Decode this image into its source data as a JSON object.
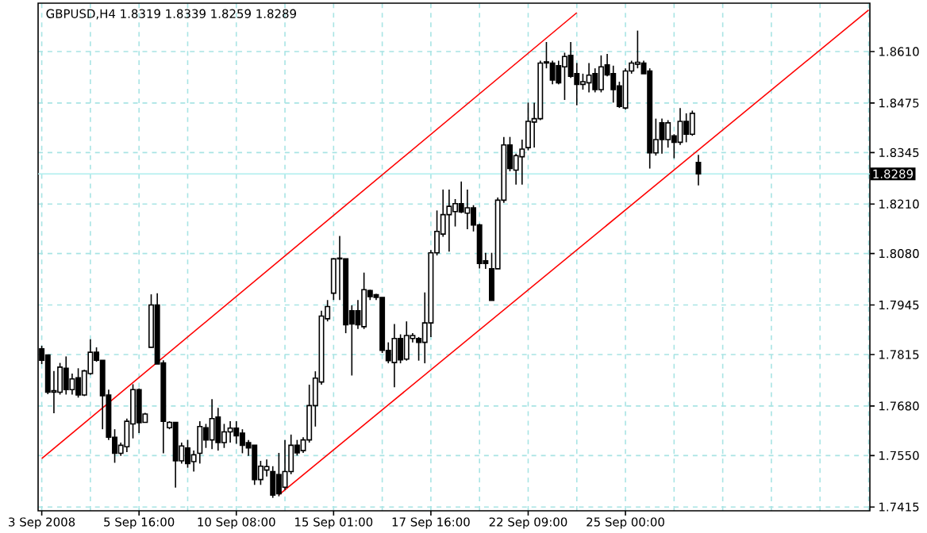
{
  "chart_data": {
    "type": "candlestick",
    "title": "GBPUSD,H4  1.8319 1.8339 1.8259 1.8289",
    "categories": [
      "3 Sep 2008",
      null,
      null,
      null,
      null,
      null,
      null,
      null,
      null,
      null,
      null,
      null,
      null,
      null,
      null,
      null,
      "5 Sep 16:00",
      null,
      null,
      null,
      null,
      null,
      null,
      null,
      null,
      null,
      null,
      null,
      null,
      null,
      null,
      null,
      "10 Sep 08:00",
      null,
      null,
      null,
      null,
      null,
      null,
      null,
      null,
      null,
      null,
      null,
      null,
      null,
      null,
      null,
      "15 Sep 01:00",
      null,
      null,
      null,
      null,
      null,
      null,
      null,
      null,
      null,
      null,
      null,
      null,
      null,
      null,
      null,
      "17 Sep 16:00",
      null,
      null,
      null,
      null,
      null,
      null,
      null,
      null,
      null,
      null,
      null,
      null,
      null,
      null,
      null,
      "22 Sep 09:00",
      null,
      null,
      null,
      null,
      null,
      null,
      null,
      null,
      null,
      null,
      null,
      null,
      null,
      null,
      null,
      "25 Sep 00:00",
      null,
      null,
      null,
      null,
      null,
      null,
      null,
      null,
      null,
      null,
      null,
      null,
      null,
      null,
      null,
      null,
      null,
      null,
      null,
      null,
      null,
      null,
      null,
      null,
      null,
      null,
      null,
      null,
      null,
      null,
      null,
      null,
      null,
      null,
      null,
      null,
      null,
      null,
      null,
      null
    ],
    "ohlc": [
      [
        1.783,
        1.7838,
        1.779,
        1.78
      ],
      [
        1.7814,
        1.7815,
        1.7711,
        1.7716
      ],
      [
        1.7716,
        1.7772,
        1.7661,
        1.772
      ],
      [
        1.7716,
        1.7793,
        1.771,
        1.7782
      ],
      [
        1.7779,
        1.781,
        1.771,
        1.7723
      ],
      [
        1.7723,
        1.7765,
        1.771,
        1.7751
      ],
      [
        1.7754,
        1.7779,
        1.7702,
        1.7709
      ],
      [
        1.7709,
        1.7775,
        1.7706,
        1.7772
      ],
      [
        1.7765,
        1.7855,
        1.7762,
        1.7821
      ],
      [
        1.7821,
        1.7834,
        1.7796,
        1.78
      ],
      [
        1.78,
        1.78,
        1.7619,
        1.7707
      ],
      [
        1.7709,
        1.7723,
        1.7591,
        1.7598
      ],
      [
        1.7598,
        1.7619,
        1.7531,
        1.7556
      ],
      [
        1.7556,
        1.7584,
        1.7549,
        1.7577
      ],
      [
        1.7573,
        1.7647,
        1.7559,
        1.764
      ],
      [
        1.7633,
        1.7737,
        1.7595,
        1.7723
      ],
      [
        1.7723,
        1.7726,
        1.7609,
        1.7636
      ],
      [
        1.7637,
        1.7662,
        1.7637,
        1.7659
      ],
      [
        1.7834,
        1.7973,
        1.7834,
        1.7945
      ],
      [
        1.7945,
        1.7976,
        1.779,
        1.779
      ],
      [
        1.7793,
        1.78,
        1.7556,
        1.764
      ],
      [
        1.7623,
        1.764,
        1.7619,
        1.7637
      ],
      [
        1.7637,
        1.7637,
        1.7466,
        1.7536
      ],
      [
        1.7536,
        1.7584,
        1.7529,
        1.7575
      ],
      [
        1.757,
        1.7591,
        1.7518,
        1.7529
      ],
      [
        1.7534,
        1.7563,
        1.7508,
        1.7552
      ],
      [
        1.7556,
        1.764,
        1.7529,
        1.7626
      ],
      [
        1.7623,
        1.7633,
        1.757,
        1.7591
      ],
      [
        1.7591,
        1.7698,
        1.7567,
        1.7647
      ],
      [
        1.7651,
        1.7675,
        1.7563,
        1.7584
      ],
      [
        1.7584,
        1.7633,
        1.757,
        1.7612
      ],
      [
        1.7612,
        1.764,
        1.7584,
        1.7622
      ],
      [
        1.7622,
        1.764,
        1.7581,
        1.7602
      ],
      [
        1.7609,
        1.7619,
        1.7556,
        1.7577
      ],
      [
        1.7584,
        1.7591,
        1.7549,
        1.757
      ],
      [
        1.7577,
        1.7577,
        1.7473,
        1.7487
      ],
      [
        1.7487,
        1.7536,
        1.7473,
        1.7522
      ],
      [
        1.7512,
        1.754,
        1.7495,
        1.7521
      ],
      [
        1.7508,
        1.7522,
        1.7439,
        1.7446
      ],
      [
        1.75,
        1.7557,
        1.7443,
        1.745
      ],
      [
        1.7467,
        1.7591,
        1.746,
        1.7508
      ],
      [
        1.7508,
        1.7605,
        1.7501,
        1.7577
      ],
      [
        1.7577,
        1.7591,
        1.755,
        1.7557
      ],
      [
        1.7563,
        1.7598,
        1.7557,
        1.7591
      ],
      [
        1.7591,
        1.7736,
        1.7584,
        1.7681
      ],
      [
        1.7681,
        1.7771,
        1.7626,
        1.7753
      ],
      [
        1.7743,
        1.793,
        1.7736,
        1.7916
      ],
      [
        1.7909,
        1.7958,
        1.7902,
        1.7941
      ],
      [
        1.7976,
        1.8068,
        1.7958,
        1.8066
      ],
      [
        1.8066,
        1.8126,
        1.7958,
        1.8068
      ],
      [
        1.8066,
        1.8066,
        1.7871,
        1.7893
      ],
      [
        1.793,
        1.7944,
        1.776,
        1.7895
      ],
      [
        1.793,
        1.7958,
        1.7882,
        1.7893
      ],
      [
        1.7888,
        1.803,
        1.7882,
        1.7985
      ],
      [
        1.7983,
        1.7985,
        1.7958,
        1.7967
      ],
      [
        1.7972,
        1.7974,
        1.7958,
        1.7965
      ],
      [
        1.7965,
        1.7965,
        1.7819,
        1.7826
      ],
      [
        1.7826,
        1.7847,
        1.7792,
        1.7799
      ],
      [
        1.7794,
        1.7895,
        1.7729,
        1.7857
      ],
      [
        1.7857,
        1.7868,
        1.7792,
        1.7801
      ],
      [
        1.7803,
        1.7902,
        1.7799,
        1.7865
      ],
      [
        1.7857,
        1.7871,
        1.7847,
        1.7865
      ],
      [
        1.7857,
        1.7861,
        1.7799,
        1.7847
      ],
      [
        1.7847,
        1.7978,
        1.7792,
        1.7898
      ],
      [
        1.7898,
        1.8089,
        1.7861,
        1.8082
      ],
      [
        1.8082,
        1.8193,
        1.8075,
        1.8138
      ],
      [
        1.8131,
        1.8248,
        1.8124,
        1.8182
      ],
      [
        1.8182,
        1.8248,
        1.8085,
        1.8204
      ],
      [
        1.819,
        1.8223,
        1.8151,
        1.8211
      ],
      [
        1.8211,
        1.8269,
        1.8186,
        1.8189
      ],
      [
        1.8186,
        1.8248,
        1.8144,
        1.82
      ],
      [
        1.82,
        1.8207,
        1.8138,
        1.8155
      ],
      [
        1.8155,
        1.8158,
        1.8041,
        1.8054
      ],
      [
        1.8061,
        1.8082,
        1.804,
        1.8054
      ],
      [
        1.804,
        1.8082,
        1.7957,
        1.7957
      ],
      [
        1.804,
        1.8227,
        1.804,
        1.822
      ],
      [
        1.822,
        1.8386,
        1.8213,
        1.8365
      ],
      [
        1.8365,
        1.8386,
        1.8296,
        1.8303
      ],
      [
        1.8299,
        1.8342,
        1.8261,
        1.8337
      ],
      [
        1.8334,
        1.8379,
        1.8261,
        1.8354
      ],
      [
        1.8358,
        1.8476,
        1.8351,
        1.8427
      ],
      [
        1.8425,
        1.8476,
        1.8358,
        1.8434
      ],
      [
        1.8434,
        1.8586,
        1.843,
        1.858
      ],
      [
        1.858,
        1.8635,
        1.8566,
        1.8583
      ],
      [
        1.858,
        1.8586,
        1.8524,
        1.8535
      ],
      [
        1.8573,
        1.8586,
        1.8524,
        1.8528
      ],
      [
        1.857,
        1.8607,
        1.8483,
        1.8597
      ],
      [
        1.86,
        1.8635,
        1.8541,
        1.8545
      ],
      [
        1.8552,
        1.858,
        1.8469,
        1.8524
      ],
      [
        1.8524,
        1.8552,
        1.851,
        1.8531
      ],
      [
        1.8528,
        1.858,
        1.8503,
        1.8548
      ],
      [
        1.8552,
        1.8566,
        1.8503,
        1.851
      ],
      [
        1.851,
        1.86,
        1.8503,
        1.857
      ],
      [
        1.8575,
        1.8604,
        1.8545,
        1.8549
      ],
      [
        1.8552,
        1.8573,
        1.8476,
        1.851
      ],
      [
        1.852,
        1.8531,
        1.8462,
        1.8466
      ],
      [
        1.8462,
        1.8566,
        1.8458,
        1.8559
      ],
      [
        1.8559,
        1.8586,
        1.8552,
        1.858
      ],
      [
        1.8577,
        1.8665,
        1.8566,
        1.8582
      ],
      [
        1.858,
        1.8586,
        1.8552,
        1.8552
      ],
      [
        1.8559,
        1.8566,
        1.8303,
        1.8344
      ],
      [
        1.8344,
        1.8434,
        1.8337,
        1.8379
      ],
      [
        1.8423,
        1.8434,
        1.8342,
        1.8379
      ],
      [
        1.8379,
        1.843,
        1.8358,
        1.8423
      ],
      [
        1.8389,
        1.8393,
        1.833,
        1.8372
      ],
      [
        1.8372,
        1.8462,
        1.8365,
        1.8427
      ],
      [
        1.8427,
        1.8448,
        1.8372,
        1.8393
      ],
      [
        1.8393,
        1.8455,
        1.8389,
        1.8448
      ],
      [
        1.8319,
        1.8339,
        1.8259,
        1.8289
      ],
      null,
      null,
      null,
      null,
      null,
      null,
      null,
      null,
      null,
      null,
      null,
      null,
      null,
      null,
      null,
      null,
      null,
      null,
      null,
      null,
      null,
      null,
      null,
      null,
      null,
      null,
      null,
      null
    ],
    "series": [
      {
        "type": "line",
        "color": "#ff0000",
        "values": [
          1.7542,
          null,
          null,
          null,
          null,
          null,
          null,
          null,
          null,
          null,
          null,
          null,
          null,
          null,
          null,
          null,
          null,
          null,
          null,
          null,
          null,
          null,
          null,
          null,
          null,
          null,
          null,
          null,
          null,
          null,
          null,
          null,
          null,
          null,
          null,
          null,
          null,
          null,
          null,
          null,
          null,
          null,
          null,
          null,
          null,
          null,
          null,
          null,
          null,
          null,
          null,
          null,
          null,
          null,
          null,
          null,
          null,
          null,
          null,
          null,
          null,
          null,
          null,
          null,
          null,
          null,
          null,
          null,
          null,
          null,
          null,
          null,
          null,
          null,
          null,
          null,
          null,
          null,
          null,
          null,
          null,
          null,
          null,
          null,
          null,
          null,
          null,
          null,
          1.8712,
          null,
          null,
          null,
          null,
          null,
          null,
          null,
          null,
          null,
          null,
          null,
          null,
          null,
          null,
          null,
          null,
          null,
          null,
          null,
          null,
          null,
          null,
          null,
          null,
          null,
          null,
          null,
          null,
          null,
          null,
          null,
          null,
          null,
          null,
          null,
          null,
          null,
          null,
          null,
          null,
          null,
          null,
          null,
          null,
          null,
          null,
          null,
          null
        ]
      },
      {
        "type": "line",
        "color": "#ff0000",
        "values": [
          null,
          null,
          null,
          null,
          null,
          null,
          null,
          null,
          null,
          null,
          null,
          null,
          null,
          null,
          null,
          null,
          null,
          null,
          null,
          null,
          null,
          null,
          null,
          null,
          null,
          null,
          null,
          null,
          null,
          null,
          null,
          null,
          null,
          null,
          null,
          null,
          null,
          null,
          null,
          1.7447,
          null,
          null,
          null,
          null,
          null,
          null,
          null,
          null,
          null,
          null,
          null,
          null,
          null,
          null,
          null,
          null,
          null,
          null,
          null,
          null,
          null,
          null,
          null,
          null,
          null,
          null,
          null,
          null,
          null,
          null,
          null,
          null,
          null,
          null,
          null,
          null,
          null,
          null,
          null,
          null,
          null,
          null,
          null,
          null,
          null,
          null,
          null,
          null,
          null,
          null,
          null,
          null,
          null,
          null,
          null,
          null,
          null,
          null,
          null,
          null,
          null,
          null,
          null,
          null,
          null,
          null,
          null,
          null,
          null,
          null,
          null,
          null,
          null,
          null,
          null,
          null,
          null,
          null,
          null,
          null,
          null,
          null,
          null,
          null,
          null,
          null,
          null,
          null,
          null,
          null,
          null,
          null,
          null,
          null,
          null,
          null,
          1.8719
        ]
      }
    ],
    "ylim": [
      1.7405,
      1.8737
    ],
    "yticks": [
      {
        "value": 1.7415,
        "label": "1.7415"
      },
      {
        "value": 1.755,
        "label": "1.7550"
      },
      {
        "value": 1.768,
        "label": "1.7680"
      },
      {
        "value": 1.7815,
        "label": "1.7815"
      },
      {
        "value": 1.7945,
        "label": "1.7945"
      },
      {
        "value": 1.808,
        "label": "1.8080"
      },
      {
        "value": 1.821,
        "label": "1.8210"
      },
      {
        "value": 1.8345,
        "label": "1.8345"
      },
      {
        "value": 1.8475,
        "label": "1.8475"
      },
      {
        "value": 1.861,
        "label": "1.8610"
      }
    ],
    "grid": true,
    "ref_lines": [
      {
        "axis": "y",
        "value": 1.8289,
        "label": "1.8289",
        "color": "#aeeeee"
      }
    ]
  }
}
